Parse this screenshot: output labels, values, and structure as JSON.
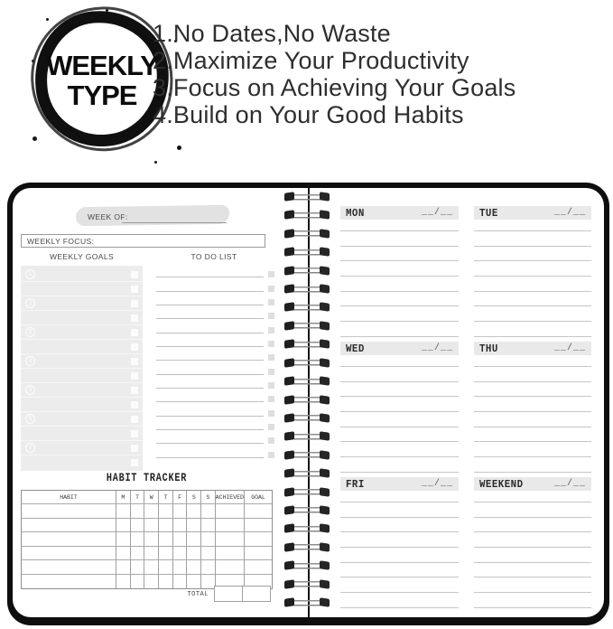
{
  "badge": {
    "title_line1": "WEEKLY",
    "title_line2": "TYPE"
  },
  "features": [
    "1.No Dates,No Waste",
    "2.Maximize Your Productivity",
    "3.Focus on Achieving Your Goals",
    "4.Build on Your Good Habits"
  ],
  "left_page": {
    "week_of_label": "WEEK OF:",
    "weekly_focus_label": "WEEKLY FOCUS:",
    "weekly_goals_title": "WEEKLY GOALS",
    "todo_title": "TO DO LIST",
    "goal_numbers": [
      "1",
      "2",
      "3",
      "4",
      "5",
      "6",
      "7"
    ],
    "goal_rows": 14,
    "todo_lines": 14,
    "habit_tracker": {
      "title": "HABIT TRACKER",
      "columns": [
        "HABIT",
        "M",
        "T",
        "W",
        "T",
        "F",
        "S",
        "S",
        "ACHIEVED",
        "GOAL"
      ],
      "data_rows": 6,
      "total_label": "TOTAL"
    }
  },
  "right_page": {
    "days": [
      {
        "label": "MON",
        "date": "__/__"
      },
      {
        "label": "TUE",
        "date": "__/__"
      },
      {
        "label": "WED",
        "date": "__/__"
      },
      {
        "label": "THU",
        "date": "__/__"
      },
      {
        "label": "FRI",
        "date": "__/__"
      },
      {
        "label": "WEEKEND",
        "date": "__/__"
      }
    ],
    "lines_per_day": 8
  },
  "binding": {
    "spiral_ring_count": 23
  },
  "colors": {
    "cover": "#0e0e0e",
    "page": "#ffffff",
    "day_header_bar": "#e9e9e9",
    "goals_panel": "#ececec",
    "highlight_swash": "#e2e2e2",
    "ruled_line": "#c6c6c6",
    "stamp_ink": "#0c0c0c"
  }
}
